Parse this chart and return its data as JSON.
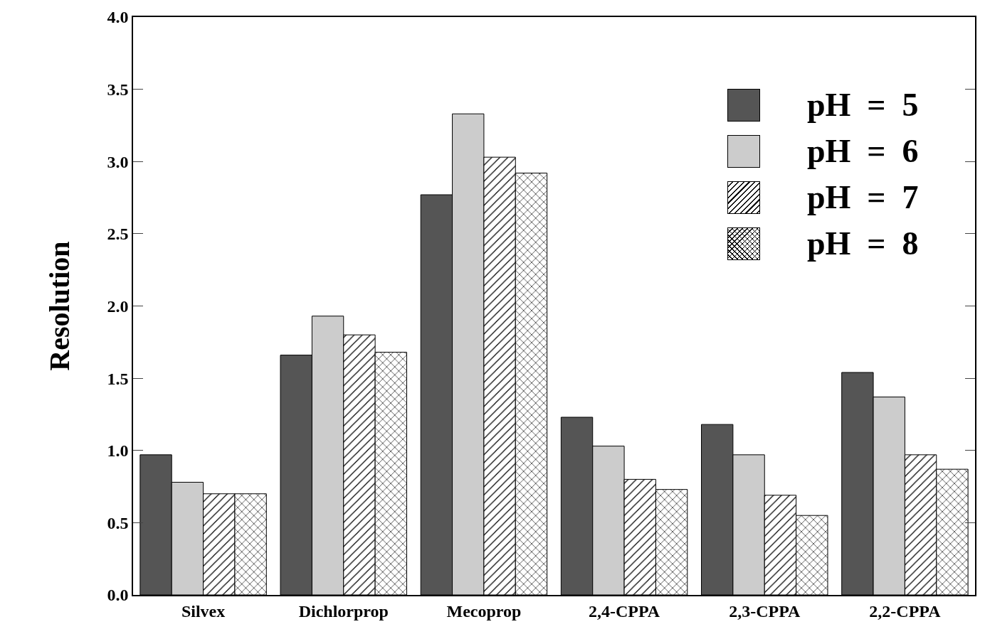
{
  "chart_data": {
    "type": "bar",
    "ylabel": "Resolution",
    "categories": [
      "Silvex",
      "Dichlorprop",
      "Mecoprop",
      "2,4-CPPA",
      "2,3-CPPA",
      "2,2-CPPA"
    ],
    "series": [
      {
        "name": "pH  =  5",
        "color": "#555555",
        "values": [
          0.97,
          1.66,
          2.77,
          1.23,
          1.18,
          1.54
        ]
      },
      {
        "name": "pH  =  6",
        "color": "#cccccc",
        "values": [
          0.78,
          1.93,
          3.33,
          1.03,
          0.97,
          1.37
        ]
      },
      {
        "name": "pH  =  7",
        "color": "#000000",
        "values": [
          0.7,
          1.8,
          3.03,
          0.8,
          0.69,
          0.97
        ]
      },
      {
        "name": "pH  =  8",
        "color": "#000000",
        "values": [
          0.7,
          1.68,
          2.92,
          0.73,
          0.55,
          0.87
        ]
      }
    ],
    "ylim": [
      0,
      4
    ],
    "yticks": [
      {
        "value": 0,
        "label": "0.0"
      },
      {
        "value": 0.5,
        "label": "0.5"
      },
      {
        "value": 1,
        "label": "1.0"
      },
      {
        "value": 1.5,
        "label": "1.5"
      },
      {
        "value": 2,
        "label": "2.0"
      },
      {
        "value": 2.5,
        "label": "2.5"
      },
      {
        "value": 3,
        "label": "3.0"
      },
      {
        "value": 3.5,
        "label": "3.5"
      },
      {
        "value": 4,
        "label": "4.0"
      }
    ],
    "grid": false,
    "legend": "top right"
  }
}
